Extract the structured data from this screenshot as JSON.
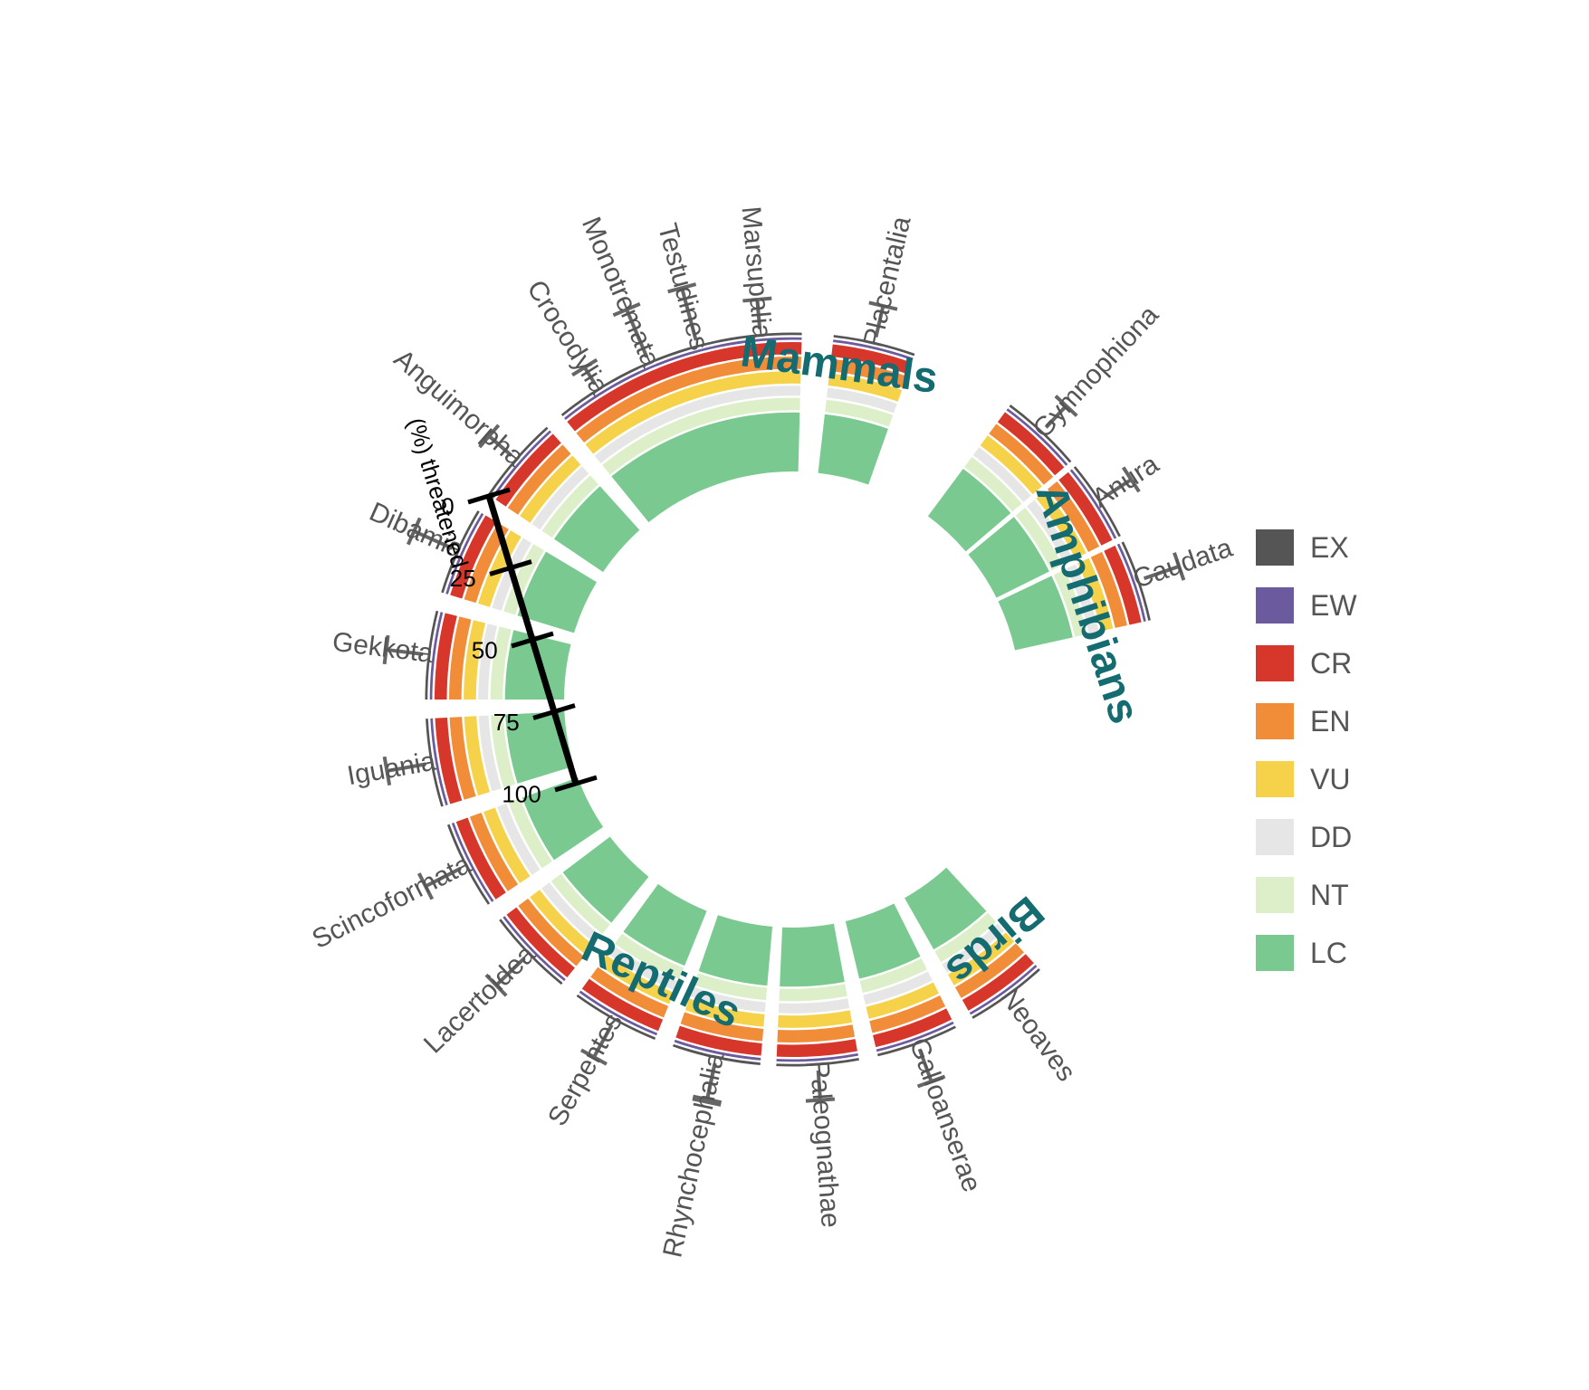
{
  "chart_data": {
    "type": "circular stacked bar",
    "axis_title": "(%) threatened",
    "axis_ticks": [
      "0",
      "25",
      "50",
      "75",
      "100"
    ],
    "axis_range": [
      0,
      100
    ],
    "categories_legend": [
      {
        "code": "EX",
        "color": "#555555"
      },
      {
        "code": "EW",
        "color": "#6b5b9e"
      },
      {
        "code": "CR",
        "color": "#d7362b"
      },
      {
        "code": "EN",
        "color": "#f18c39"
      },
      {
        "code": "VU",
        "color": "#f5d24a"
      },
      {
        "code": "DD",
        "color": "#e6e6e6"
      },
      {
        "code": "NT",
        "color": "#dcefc8"
      },
      {
        "code": "LC",
        "color": "#7ac990"
      }
    ],
    "groups": [
      {
        "name": "Mammals",
        "clades": [
          {
            "name": "Monotremata",
            "values": {
              "EX": 1,
              "EW": 1,
              "CR": 5,
              "EN": 5,
              "VU": 5,
              "DD": 4,
              "NT": 5,
              "LC": 24
            },
            "error": 21
          },
          {
            "name": "Marsupalia",
            "values": {
              "EX": 1,
              "EW": 1,
              "CR": 5,
              "EN": 5,
              "VU": 5,
              "DD": 4,
              "NT": 5,
              "LC": 24
            },
            "error": 12
          },
          {
            "name": "Placentalia",
            "values": {
              "EX": 1,
              "EW": 1,
              "CR": 5,
              "EN": 5,
              "VU": 5,
              "DD": 4,
              "NT": 5,
              "LC": 24
            },
            "error": 13
          }
        ]
      },
      {
        "name": "Amphibians",
        "clades": [
          {
            "name": "Gymnophiona",
            "values": {
              "EX": 1,
              "EW": 1,
              "CR": 5,
              "EN": 5,
              "VU": 5,
              "DD": 4,
              "NT": 5,
              "LC": 24
            },
            "error": 12
          },
          {
            "name": "Anura",
            "values": {
              "EX": 1,
              "EW": 1,
              "CR": 5,
              "EN": 5,
              "VU": 5,
              "DD": 4,
              "NT": 5,
              "LC": 24
            },
            "error": 13
          },
          {
            "name": "Caudata",
            "values": {
              "EX": 1,
              "EW": 1,
              "CR": 5,
              "EN": 5,
              "VU": 5,
              "DD": 4,
              "NT": 5,
              "LC": 24
            },
            "error": 15
          }
        ]
      },
      {
        "name": "Birds",
        "clades": [
          {
            "name": "Neoaves",
            "values": {
              "EX": 1,
              "EW": 1,
              "CR": 5,
              "EN": 5,
              "VU": 5,
              "DD": 4,
              "NT": 5,
              "LC": 24
            },
            "error": 0
          },
          {
            "name": "Galloanserae",
            "values": {
              "EX": 1,
              "EW": 1,
              "CR": 5,
              "EN": 5,
              "VU": 5,
              "DD": 4,
              "NT": 5,
              "LC": 24
            },
            "error": 14
          },
          {
            "name": "Paleognathae",
            "values": {
              "EX": 1,
              "EW": 1,
              "CR": 5,
              "EN": 5,
              "VU": 5,
              "DD": 4,
              "NT": 5,
              "LC": 24
            },
            "error": 12
          },
          {
            "name": "",
            "values": {
              "EX": 1,
              "EW": 1,
              "CR": 5,
              "EN": 5,
              "VU": 5,
              "DD": 4,
              "NT": 5,
              "LC": 24
            },
            "error": 15
          }
        ]
      },
      {
        "name": "Reptiles",
        "clades": [
          {
            "name": "Rhynchocephalia",
            "values": {
              "EX": 1,
              "EW": 1,
              "CR": 5,
              "EN": 5,
              "VU": 5,
              "DD": 4,
              "NT": 5,
              "LC": 24
            },
            "error": 16
          },
          {
            "name": "Serpentes",
            "values": {
              "EX": 1,
              "EW": 1,
              "CR": 5,
              "EN": 5,
              "VU": 5,
              "DD": 4,
              "NT": 5,
              "LC": 24
            },
            "error": 15
          },
          {
            "name": "Lacertoidea",
            "values": {
              "EX": 1,
              "EW": 1,
              "CR": 5,
              "EN": 5,
              "VU": 5,
              "DD": 4,
              "NT": 5,
              "LC": 24
            },
            "error": 16
          },
          {
            "name": "Scincoformata",
            "values": {
              "EX": 1,
              "EW": 1,
              "CR": 5,
              "EN": 5,
              "VU": 5,
              "DD": 4,
              "NT": 5,
              "LC": 24
            },
            "error": 16
          },
          {
            "name": "Iguania",
            "values": {
              "EX": 1,
              "EW": 1,
              "CR": 5,
              "EN": 5,
              "VU": 5,
              "DD": 4,
              "NT": 5,
              "LC": 24
            },
            "error": 16
          },
          {
            "name": "Gekkota",
            "values": {
              "EX": 1,
              "EW": 1,
              "CR": 5,
              "EN": 5,
              "VU": 5,
              "DD": 4,
              "NT": 5,
              "LC": 24
            },
            "error": 15
          },
          {
            "name": "Dibamia",
            "values": {
              "EX": 1,
              "EW": 1,
              "CR": 5,
              "EN": 5,
              "VU": 5,
              "DD": 4,
              "NT": 5,
              "LC": 24
            },
            "error": 17
          },
          {
            "name": "Anguimorpha",
            "values": {
              "EX": 1,
              "EW": 1,
              "CR": 5,
              "EN": 5,
              "VU": 5,
              "DD": 4,
              "NT": 5,
              "LC": 24
            },
            "error": 12
          },
          {
            "name": "Crocodylia",
            "values": {
              "EX": 1,
              "EW": 1,
              "CR": 5,
              "EN": 5,
              "VU": 5,
              "DD": 4,
              "NT": 5,
              "LC": 24
            },
            "error": 8
          },
          {
            "name": "Testudines",
            "values": {
              "EX": 1,
              "EW": 1,
              "CR": 5,
              "EN": 5,
              "VU": 5,
              "DD": 4,
              "NT": 5,
              "LC": 24
            },
            "error": 22
          }
        ]
      }
    ]
  }
}
